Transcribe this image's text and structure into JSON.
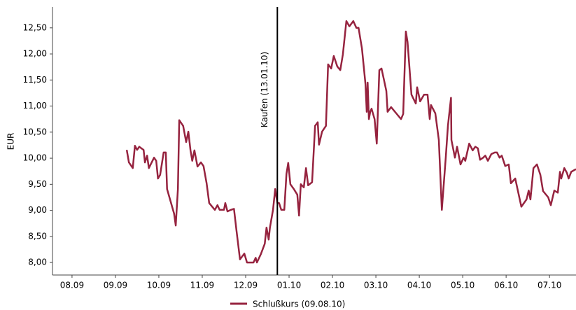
{
  "chart_data": {
    "type": "line",
    "y_label": "EUR",
    "xlim": [
      -0.45,
      11.61
    ],
    "xticks": [
      {
        "value": 0,
        "label": "08.09"
      },
      {
        "value": 1,
        "label": "09.09"
      },
      {
        "value": 2,
        "label": "10.09"
      },
      {
        "value": 3,
        "label": "11.09"
      },
      {
        "value": 4,
        "label": "12.09"
      },
      {
        "value": 5,
        "label": "01.10"
      },
      {
        "value": 6,
        "label": "02.10"
      },
      {
        "value": 7,
        "label": "03.10"
      },
      {
        "value": 8,
        "label": "04.10"
      },
      {
        "value": 9,
        "label": "05.10"
      },
      {
        "value": 10,
        "label": "06.10"
      },
      {
        "value": 11,
        "label": "07.10"
      }
    ],
    "ylim": [
      7.76,
      12.9
    ],
    "yticks": [
      {
        "value": 8,
        "label": "8,00"
      },
      {
        "value": 8.5,
        "label": "8,50"
      },
      {
        "value": 9,
        "label": "9,00"
      },
      {
        "value": 9.5,
        "label": "9,50"
      },
      {
        "value": 10,
        "label": "10,00"
      },
      {
        "value": 10.5,
        "label": "10,50"
      },
      {
        "value": 11,
        "label": "11,00"
      },
      {
        "value": 11.5,
        "label": "11,50"
      },
      {
        "value": 12,
        "label": "12,00"
      },
      {
        "value": 12.5,
        "label": "12,50"
      }
    ],
    "grid": false,
    "legend": "bottom",
    "annotations": [
      {
        "x": 4.73,
        "label": "Kaufen (13.01.10)"
      }
    ],
    "x": [
      1.26,
      1.31,
      1.4,
      1.45,
      1.5,
      1.55,
      1.65,
      1.68,
      1.73,
      1.77,
      1.89,
      1.94,
      1.98,
      2.03,
      2.11,
      2.16,
      2.19,
      2.35,
      2.39,
      2.44,
      2.47,
      2.56,
      2.63,
      2.68,
      2.73,
      2.77,
      2.82,
      2.89,
      2.97,
      3.03,
      3.1,
      3.16,
      3.29,
      3.35,
      3.4,
      3.5,
      3.53,
      3.58,
      3.66,
      3.73,
      3.79,
      3.87,
      3.97,
      4.03,
      4.18,
      4.23,
      4.26,
      4.35,
      4.44,
      4.48,
      4.53,
      4.56,
      4.63,
      4.68,
      4.73,
      4.77,
      4.82,
      4.89,
      4.94,
      4.98,
      5.03,
      5.11,
      5.19,
      5.23,
      5.27,
      5.34,
      5.39,
      5.44,
      5.53,
      5.6,
      5.66,
      5.69,
      5.76,
      5.85,
      5.9,
      5.97,
      6.03,
      6.11,
      6.18,
      6.24,
      6.32,
      6.39,
      6.48,
      6.55,
      6.6,
      6.68,
      6.76,
      6.79,
      6.81,
      6.84,
      6.87,
      6.9,
      6.97,
      7.02,
      7.08,
      7.13,
      7.18,
      7.24,
      7.27,
      7.35,
      7.47,
      7.58,
      7.63,
      7.69,
      7.73,
      7.82,
      7.92,
      7.95,
      8.02,
      8.11,
      8.19,
      8.24,
      8.27,
      8.37,
      8.45,
      8.52,
      8.61,
      8.66,
      8.73,
      8.74,
      8.82,
      8.87,
      8.95,
      9.02,
      9.06,
      9.15,
      9.23,
      9.29,
      9.35,
      9.4,
      9.47,
      9.52,
      9.58,
      9.66,
      9.74,
      9.79,
      9.85,
      9.9,
      9.98,
      10.06,
      10.11,
      10.21,
      10.27,
      10.35,
      10.47,
      10.52,
      10.56,
      10.63,
      10.71,
      10.79,
      10.85,
      10.97,
      11.03,
      11.11,
      11.19,
      11.24,
      11.27,
      11.34,
      11.4,
      11.44,
      11.5,
      11.61
    ],
    "series": [
      {
        "name": "Schlußkurs (09.08.10)",
        "color": "#96233f",
        "values": [
          10.16,
          9.92,
          9.81,
          10.24,
          10.16,
          10.22,
          10.16,
          9.92,
          10.05,
          9.81,
          10.01,
          9.95,
          9.61,
          9.68,
          10.11,
          10.11,
          9.41,
          8.94,
          8.71,
          9.41,
          10.73,
          10.62,
          10.31,
          10.51,
          10.15,
          9.95,
          10.15,
          9.84,
          9.92,
          9.85,
          9.52,
          9.14,
          9.01,
          9.1,
          9.01,
          9.01,
          9.14,
          8.98,
          9.01,
          9.03,
          8.6,
          8.06,
          8.17,
          8.0,
          8.0,
          8.09,
          8.0,
          8.16,
          8.36,
          8.67,
          8.44,
          8.67,
          9.01,
          9.41,
          9.14,
          9.14,
          9.01,
          9.01,
          9.7,
          9.91,
          9.5,
          9.41,
          9.3,
          8.9,
          9.5,
          9.44,
          9.81,
          9.48,
          9.54,
          10.62,
          10.69,
          10.26,
          10.51,
          10.62,
          11.8,
          11.72,
          11.96,
          11.76,
          11.69,
          11.99,
          12.63,
          12.53,
          12.63,
          12.5,
          12.5,
          12.1,
          11.42,
          10.89,
          11.45,
          10.75,
          10.89,
          10.95,
          10.75,
          10.28,
          11.69,
          11.72,
          11.53,
          11.29,
          10.89,
          10.98,
          10.86,
          10.75,
          10.85,
          12.43,
          12.23,
          11.22,
          11.05,
          11.36,
          11.09,
          11.22,
          11.22,
          10.75,
          11.02,
          10.86,
          10.35,
          9.01,
          10.01,
          10.62,
          11.16,
          10.35,
          10.01,
          10.22,
          9.88,
          10.01,
          9.95,
          10.28,
          10.15,
          10.22,
          10.19,
          9.97,
          10.01,
          10.05,
          9.95,
          10.08,
          10.11,
          10.11,
          10.01,
          10.05,
          9.85,
          9.88,
          9.52,
          9.61,
          9.38,
          9.07,
          9.21,
          9.38,
          9.21,
          9.81,
          9.88,
          9.68,
          9.37,
          9.25,
          9.1,
          9.38,
          9.34,
          9.74,
          9.61,
          9.81,
          9.72,
          9.61,
          9.74,
          9.79
        ]
      }
    ]
  }
}
